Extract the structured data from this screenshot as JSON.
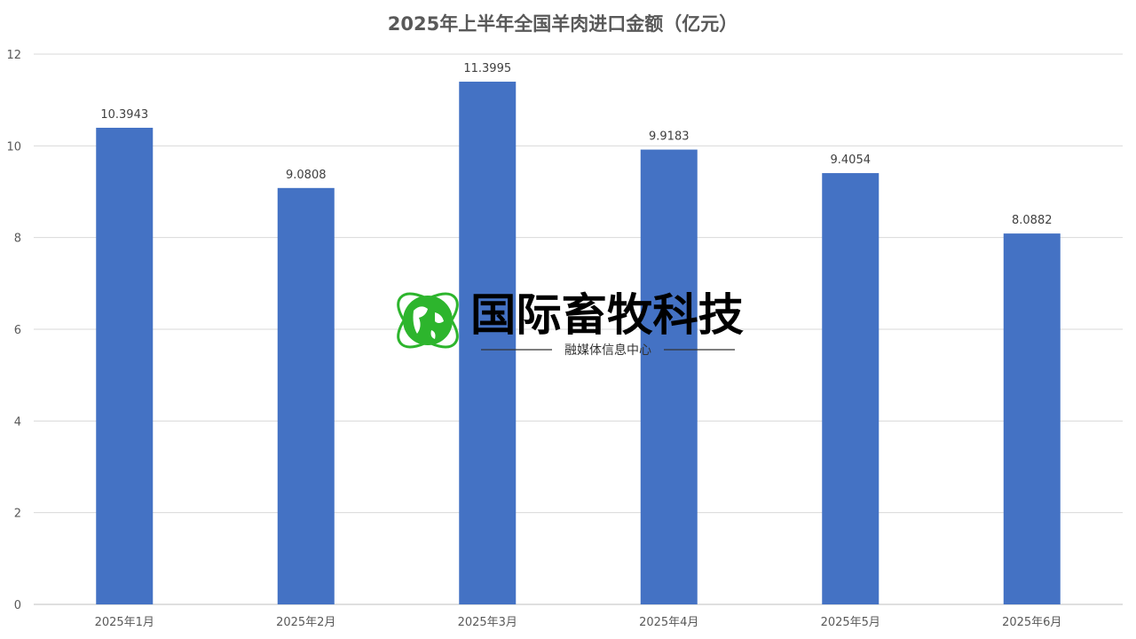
{
  "chart_data": {
    "type": "bar",
    "title": "2025年上半年全国羊肉进口金额（亿元）",
    "categories": [
      "2025年1月",
      "2025年2月",
      "2025年3月",
      "2025年4月",
      "2025年5月",
      "2025年6月"
    ],
    "values": [
      10.3943,
      9.0808,
      11.3995,
      9.9183,
      9.4054,
      8.0882
    ],
    "data_labels": [
      "10.3943",
      "9.0808",
      "11.3995",
      "9.9183",
      "9.4054",
      "8.0882"
    ],
    "ylim": [
      0,
      12
    ],
    "yticks": [
      "0",
      "2",
      "4",
      "6",
      "8",
      "10",
      "12"
    ],
    "grid": true,
    "legend": "none",
    "bar_color": "#4472C4"
  },
  "watermark": {
    "title": "国际畜牧科技",
    "subtitle": "融媒体信息中心",
    "icon": "globe-icon",
    "icon_color": "#2DB52D"
  }
}
